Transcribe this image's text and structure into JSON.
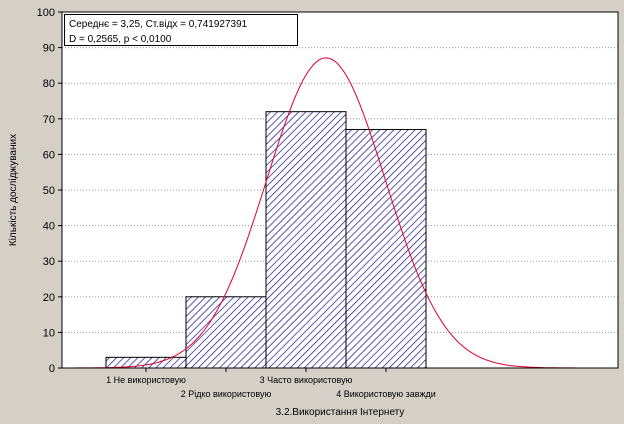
{
  "chart_data": {
    "type": "bar",
    "xlabel": "3.2.Використання Інтернету",
    "ylabel": "Кількість досліджуваних",
    "ylim": [
      0,
      100
    ],
    "yticks": [
      0,
      10,
      20,
      30,
      40,
      50,
      60,
      70,
      80,
      90,
      100
    ],
    "grid": true,
    "categories": [
      {
        "x": 1,
        "label": "1 Не використовую"
      },
      {
        "x": 2,
        "label": "2 Рідко використовую"
      },
      {
        "x": 3,
        "label": "3 Часто використовую"
      },
      {
        "x": 4,
        "label": "4 Використовую завжди"
      }
    ],
    "values": [
      3,
      20,
      72,
      67
    ],
    "curve": {
      "type": "normal",
      "mean": 3.25,
      "sd": 0.741927391,
      "n": 162,
      "bin_width": 1,
      "color": "#e0002a"
    },
    "stats": {
      "line1": "Середнє = 3,25, Ст.відх = 0,741927391",
      "line2": "D = 0,2565, p < 0,0100"
    },
    "bar_fill": "#ffffff",
    "bar_hatch_color": "#000080",
    "grid_color": "#9a9a9a"
  }
}
